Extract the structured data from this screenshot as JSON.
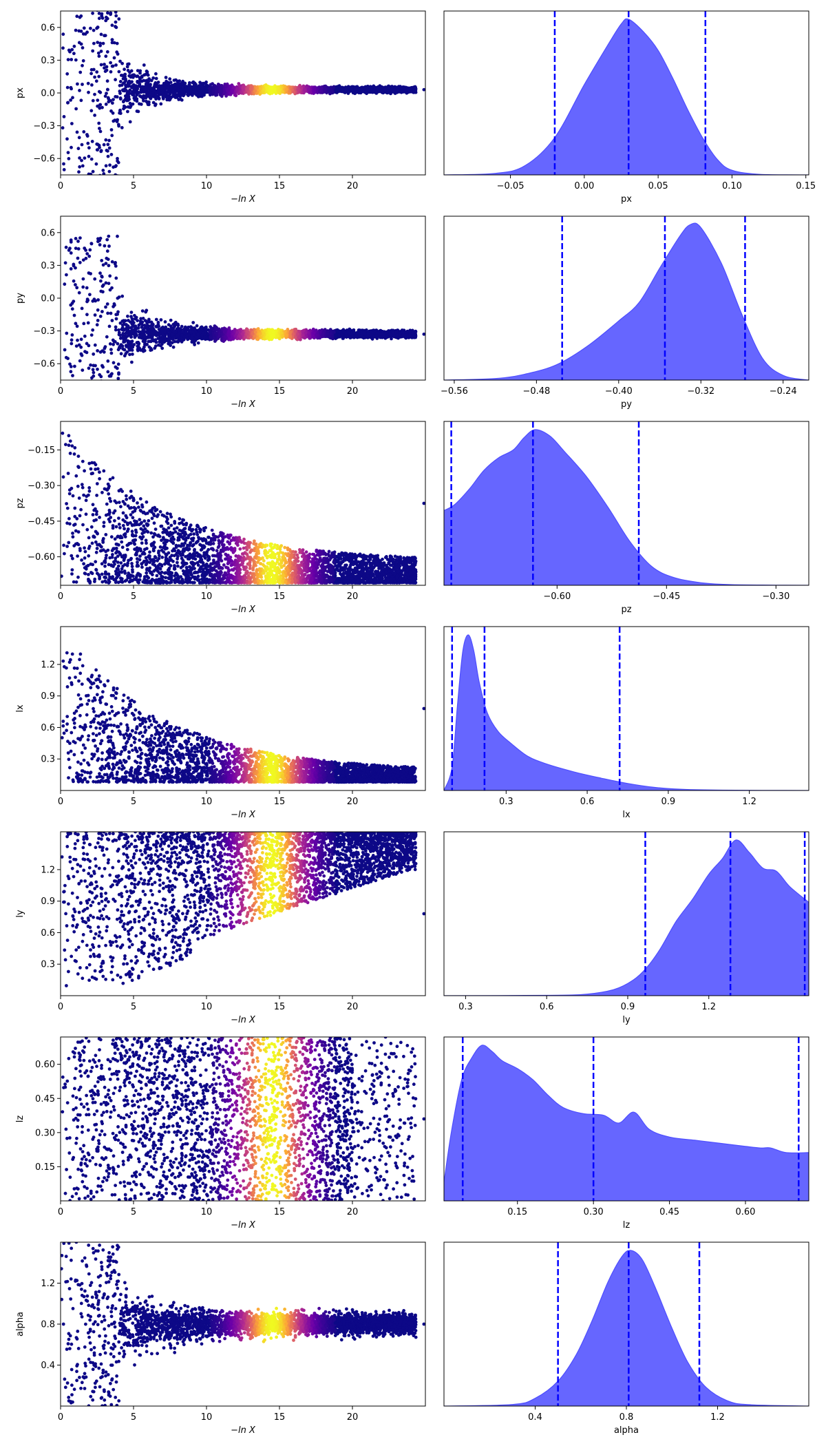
{
  "figure": {
    "trace_xlabel": "−ln X",
    "trace_xticks": [
      "0",
      "5",
      "10",
      "15",
      "20"
    ],
    "trace_xlim": [
      0,
      25
    ],
    "colormap": "plasma",
    "scatter_color_low": "#0d0887",
    "kde_fill_color": "#6666ff",
    "kde_line_color": "#4d4dff",
    "quantile_line_color": "#0000ff",
    "quantile_line_style": "dashed"
  },
  "chart_data": [
    {
      "type": "scatter",
      "ylabel": "px",
      "ylim": [
        -0.75,
        0.75
      ],
      "yticks": [
        "0.6",
        "0.3",
        "0.0",
        "−0.3",
        "−0.6"
      ],
      "ytick_values": [
        0.6,
        0.3,
        0.0,
        -0.3,
        -0.6
      ],
      "trace": {
        "kind": "funnel",
        "center": 0.03,
        "final_spread": 0.02,
        "xmax": 24.5
      },
      "posterior": {
        "type": "area",
        "xlabel": "px",
        "xlim": [
          -0.095,
          0.152
        ],
        "xticks": [
          "−0.05",
          "0.00",
          "0.05",
          "0.10",
          "0.15"
        ],
        "xtick_values": [
          -0.05,
          0.0,
          0.05,
          0.1,
          0.15
        ],
        "quantiles": [
          -0.02,
          0.03,
          0.082
        ],
        "density": {
          "x": [
            -0.095,
            -0.06,
            -0.04,
            -0.02,
            0.0,
            0.015,
            0.025,
            0.03,
            0.04,
            0.05,
            0.06,
            0.07,
            0.08,
            0.09,
            0.1,
            0.12,
            0.152
          ],
          "y": [
            0,
            0.01,
            0.06,
            0.24,
            0.58,
            0.82,
            0.97,
            1.0,
            0.92,
            0.8,
            0.62,
            0.42,
            0.24,
            0.1,
            0.03,
            0.003,
            0
          ]
        }
      }
    },
    {
      "type": "scatter",
      "ylabel": "py",
      "ylim": [
        -0.75,
        0.75
      ],
      "yticks": [
        "0.6",
        "0.3",
        "0.0",
        "−0.3",
        "−0.6"
      ],
      "ytick_values": [
        0.6,
        0.3,
        0.0,
        -0.3,
        -0.6
      ],
      "trace": {
        "kind": "funnel",
        "center": -0.33,
        "final_spread": 0.025,
        "xmax": 24.5
      },
      "posterior": {
        "type": "area",
        "xlabel": "py",
        "xlim": [
          -0.57,
          -0.215
        ],
        "xticks": [
          "−0.56",
          "−0.48",
          "−0.40",
          "−0.32",
          "−0.24"
        ],
        "xtick_values": [
          -0.56,
          -0.48,
          -0.4,
          -0.32,
          -0.24
        ],
        "quantiles": [
          -0.455,
          -0.355,
          -0.277
        ],
        "density": {
          "x": [
            -0.57,
            -0.52,
            -0.49,
            -0.46,
            -0.43,
            -0.4,
            -0.38,
            -0.36,
            -0.34,
            -0.33,
            -0.32,
            -0.3,
            -0.28,
            -0.26,
            -0.24,
            -0.215
          ],
          "y": [
            0,
            0.01,
            0.04,
            0.1,
            0.22,
            0.38,
            0.5,
            0.72,
            0.93,
            1.0,
            0.98,
            0.75,
            0.42,
            0.14,
            0.03,
            0
          ]
        }
      }
    },
    {
      "type": "scatter",
      "ylabel": "pz",
      "ylim": [
        -0.72,
        -0.03
      ],
      "yticks": [
        "−0.15",
        "−0.30",
        "−0.45",
        "−0.60"
      ],
      "ytick_values": [
        -0.15,
        -0.3,
        -0.45,
        -0.6
      ],
      "trace": {
        "kind": "floor",
        "floor": -0.71,
        "top_start": -0.03,
        "top_end": -0.62,
        "xmax": 24.5
      },
      "posterior": {
        "type": "area",
        "xlabel": "pz",
        "xlim": [
          -0.755,
          -0.255
        ],
        "xticks": [
          "−0.60",
          "−0.45",
          "−0.30"
        ],
        "xtick_values": [
          -0.6,
          -0.45,
          -0.3
        ],
        "quantiles": [
          -0.745,
          -0.633,
          -0.488
        ],
        "density": {
          "x": [
            -0.755,
            -0.74,
            -0.72,
            -0.7,
            -0.68,
            -0.66,
            -0.645,
            -0.63,
            -0.61,
            -0.59,
            -0.56,
            -0.53,
            -0.5,
            -0.47,
            -0.44,
            -0.4,
            -0.36,
            -0.3,
            -0.255
          ],
          "y": [
            0.48,
            0.52,
            0.62,
            0.74,
            0.82,
            0.87,
            0.95,
            1.0,
            0.96,
            0.86,
            0.7,
            0.5,
            0.28,
            0.12,
            0.05,
            0.015,
            0.004,
            0.001,
            0
          ]
        }
      }
    },
    {
      "type": "scatter",
      "ylabel": "lx",
      "ylim": [
        0.0,
        1.56
      ],
      "yticks": [
        "1.2",
        "0.9",
        "0.6",
        "0.3"
      ],
      "ytick_values": [
        1.2,
        0.9,
        0.6,
        0.3
      ],
      "trace": {
        "kind": "floor",
        "floor": 0.08,
        "top_start": 1.56,
        "top_end": 0.18,
        "xmax": 24.5
      },
      "posterior": {
        "type": "area",
        "xlabel": "lx",
        "xlim": [
          0.07,
          1.42
        ],
        "xticks": [
          "0.3",
          "0.6",
          "0.9",
          "1.2"
        ],
        "xtick_values": [
          0.3,
          0.6,
          0.9,
          1.2
        ],
        "quantiles": [
          0.1,
          0.22,
          0.72
        ],
        "density": {
          "x": [
            0.07,
            0.1,
            0.12,
            0.14,
            0.16,
            0.18,
            0.2,
            0.23,
            0.27,
            0.32,
            0.38,
            0.45,
            0.55,
            0.65,
            0.75,
            0.85,
            0.95,
            1.1,
            1.42
          ],
          "y": [
            0,
            0.15,
            0.55,
            0.9,
            1.0,
            0.9,
            0.7,
            0.5,
            0.38,
            0.3,
            0.22,
            0.17,
            0.12,
            0.08,
            0.045,
            0.02,
            0.008,
            0.002,
            0
          ]
        }
      }
    },
    {
      "type": "scatter",
      "ylabel": "ly",
      "ylim": [
        0.0,
        1.56
      ],
      "yticks": [
        "1.2",
        "0.9",
        "0.6",
        "0.3"
      ],
      "ytick_values": [
        1.2,
        0.9,
        0.6,
        0.3
      ],
      "trace": {
        "kind": "ceiling",
        "ceiling": 1.56,
        "bottom_start": 0.02,
        "bottom_end": 1.2,
        "xmax": 24.5
      },
      "posterior": {
        "type": "area",
        "xlabel": "ly",
        "xlim": [
          0.22,
          1.57
        ],
        "xticks": [
          "0.3",
          "0.6",
          "0.9",
          "1.2"
        ],
        "xtick_values": [
          0.3,
          0.6,
          0.9,
          1.2
        ],
        "quantiles": [
          0.965,
          1.28,
          1.555
        ],
        "density": {
          "x": [
            0.22,
            0.6,
            0.75,
            0.85,
            0.92,
            0.97,
            1.02,
            1.08,
            1.14,
            1.2,
            1.25,
            1.3,
            1.35,
            1.4,
            1.45,
            1.5,
            1.57
          ],
          "y": [
            0,
            0.002,
            0.01,
            0.04,
            0.1,
            0.18,
            0.3,
            0.48,
            0.62,
            0.78,
            0.88,
            1.0,
            0.92,
            0.82,
            0.8,
            0.7,
            0.6
          ]
        }
      }
    },
    {
      "type": "scatter",
      "ylabel": "lz",
      "ylim": [
        0.0,
        0.72
      ],
      "yticks": [
        "0.60",
        "0.45",
        "0.30",
        "0.15"
      ],
      "ytick_values": [
        0.6,
        0.45,
        0.3,
        0.15
      ],
      "trace": {
        "kind": "uniform",
        "low": 0.0,
        "high": 0.72,
        "xmax": 24.5
      },
      "posterior": {
        "type": "area",
        "xlabel": "lz",
        "xlim": [
          0.005,
          0.725
        ],
        "xticks": [
          "0.15",
          "0.30",
          "0.45",
          "0.60"
        ],
        "xtick_values": [
          0.15,
          0.3,
          0.45,
          0.6
        ],
        "quantiles": [
          0.042,
          0.3,
          0.705
        ],
        "density": {
          "x": [
            0.005,
            0.02,
            0.04,
            0.06,
            0.08,
            0.1,
            0.12,
            0.15,
            0.18,
            0.21,
            0.24,
            0.28,
            0.32,
            0.35,
            0.38,
            0.41,
            0.45,
            0.5,
            0.55,
            0.6,
            0.63,
            0.65,
            0.68,
            0.725
          ],
          "y": [
            0.12,
            0.45,
            0.78,
            0.92,
            1.0,
            0.96,
            0.9,
            0.85,
            0.78,
            0.68,
            0.6,
            0.56,
            0.55,
            0.5,
            0.57,
            0.46,
            0.41,
            0.39,
            0.37,
            0.35,
            0.34,
            0.34,
            0.31,
            0.31
          ]
        }
      }
    },
    {
      "type": "scatter",
      "ylabel": "alpha",
      "ylim": [
        0.0,
        1.6
      ],
      "yticks": [
        "1.2",
        "0.8",
        "0.4"
      ],
      "ytick_values": [
        1.2,
        0.8,
        0.4
      ],
      "trace": {
        "kind": "funnel",
        "center": 0.8,
        "final_spread": 0.08,
        "xmax": 24.5
      },
      "posterior": {
        "type": "area",
        "xlabel": "alpha",
        "xlim": [
          0.0,
          1.6
        ],
        "xticks": [
          "0.4",
          "0.8",
          "1.2"
        ],
        "xtick_values": [
          0.4,
          0.8,
          1.2
        ],
        "quantiles": [
          0.5,
          0.81,
          1.12
        ],
        "density": {
          "x": [
            0.0,
            0.3,
            0.4,
            0.5,
            0.58,
            0.65,
            0.72,
            0.78,
            0.82,
            0.87,
            0.93,
            1.0,
            1.07,
            1.15,
            1.25,
            1.35,
            1.6
          ],
          "y": [
            0,
            0.01,
            0.05,
            0.16,
            0.33,
            0.55,
            0.8,
            0.96,
            1.0,
            0.94,
            0.75,
            0.5,
            0.28,
            0.12,
            0.03,
            0.008,
            0
          ]
        }
      }
    }
  ]
}
